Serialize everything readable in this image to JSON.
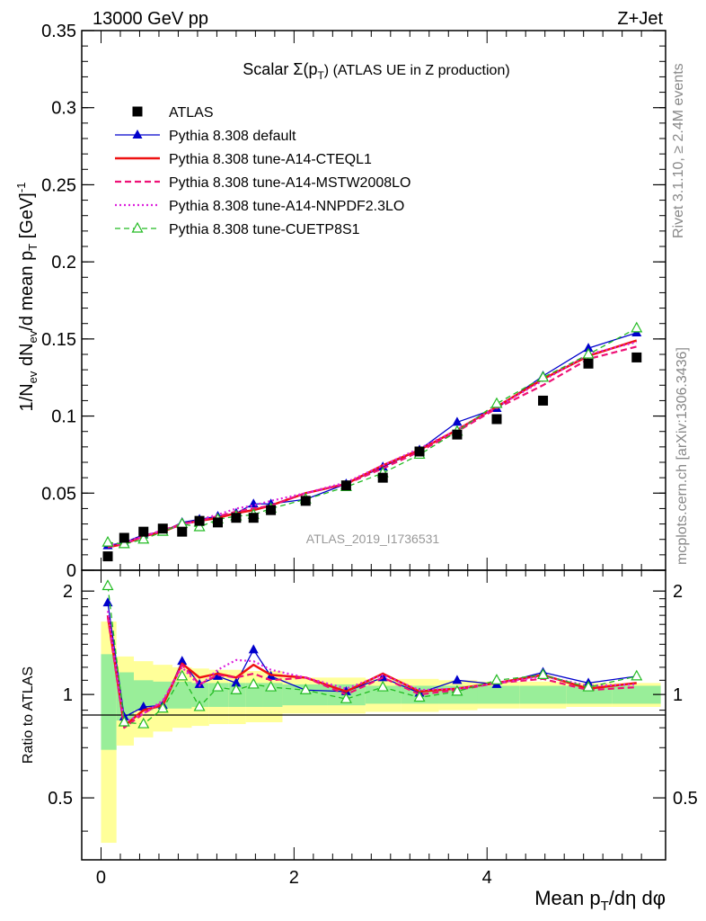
{
  "header": {
    "left": "13000 GeV pp",
    "right": "Z+Jet"
  },
  "side_labels": {
    "rivet": "Rivet 3.1.10, ≥ 2.4M events",
    "mcplots": "mcplots.cern.ch [arXiv:1306.3436]"
  },
  "watermark": "ATLAS_2019_I1736531",
  "chart_data": [
    {
      "type": "scatter",
      "title": "Scalar Σ(p_T) (ATLAS UE in Z production)",
      "xlabel": "Mean p_T/dη dφ",
      "ylabel": "1/N_ev dN_ev/d mean p_T [GeV]^-1",
      "xlim": [
        -0.2,
        5.85
      ],
      "ylim": [
        0,
        0.35
      ],
      "yticks": [
        0,
        0.05,
        0.1,
        0.15,
        0.2,
        0.25,
        0.3,
        0.35
      ],
      "ytick_labels": [
        "0",
        "0.05",
        "0.1",
        "0.15",
        "0.2",
        "0.25",
        "0.3",
        "0.35"
      ],
      "legend_position": "top-left",
      "x": [
        0.07,
        0.24,
        0.44,
        0.64,
        0.84,
        1.02,
        1.21,
        1.4,
        1.58,
        1.76,
        2.12,
        2.54,
        2.92,
        3.3,
        3.69,
        4.1,
        4.58,
        5.05,
        5.55
      ],
      "series": [
        {
          "name": "ATLAS",
          "style": "data",
          "color": "#000000",
          "values": [
            0.009,
            0.021,
            0.025,
            0.027,
            0.025,
            0.032,
            0.031,
            0.034,
            0.034,
            0.039,
            0.045,
            0.055,
            0.06,
            0.077,
            0.088,
            0.098,
            0.11,
            0.134,
            0.138
          ]
        },
        {
          "name": "Pythia 8.308 default",
          "style": "solid-triangle",
          "color": "#0000cc",
          "values": [
            0.016,
            0.018,
            0.023,
            0.025,
            0.031,
            0.033,
            0.035,
            0.037,
            0.043,
            0.043,
            0.046,
            0.056,
            0.067,
            0.078,
            0.096,
            0.105,
            0.126,
            0.144,
            0.154
          ]
        },
        {
          "name": "Pythia 8.308 tune-A14-CTEQL1",
          "style": "solid-thick",
          "color": "#ee1111",
          "values": [
            0.015,
            0.017,
            0.022,
            0.025,
            0.03,
            0.032,
            0.034,
            0.037,
            0.039,
            0.042,
            0.05,
            0.056,
            0.068,
            0.078,
            0.091,
            0.106,
            0.124,
            0.139,
            0.149
          ]
        },
        {
          "name": "Pythia 8.308 tune-A14-MSTW2008LO",
          "style": "dashed",
          "color": "#ee1177",
          "values": [
            0.015,
            0.017,
            0.022,
            0.026,
            0.03,
            0.032,
            0.035,
            0.038,
            0.04,
            0.042,
            0.05,
            0.056,
            0.066,
            0.077,
            0.09,
            0.105,
            0.12,
            0.137,
            0.145
          ]
        },
        {
          "name": "Pythia 8.308 tune-A14-NNPDF2.3LO",
          "style": "dotted",
          "color": "#dd22dd",
          "values": [
            0.016,
            0.018,
            0.022,
            0.026,
            0.029,
            0.033,
            0.036,
            0.04,
            0.042,
            0.045,
            0.05,
            0.057,
            0.068,
            0.079,
            0.091,
            0.106,
            0.123,
            0.14,
            0.148
          ]
        },
        {
          "name": "Pythia 8.308 tune-CUETP8S1",
          "style": "dashed-open-triangle",
          "color": "#22bb22",
          "values": [
            0.018,
            0.017,
            0.02,
            0.025,
            0.03,
            0.028,
            0.033,
            0.035,
            0.036,
            0.04,
            0.046,
            0.054,
            0.063,
            0.075,
            0.09,
            0.108,
            0.125,
            0.14,
            0.157
          ]
        }
      ]
    },
    {
      "type": "line",
      "ylabel": "Ratio to ATLAS",
      "xlabel": "Mean p_T/dη dφ",
      "xlim": [
        -0.2,
        5.85
      ],
      "ylim": [
        0.33,
        2.3
      ],
      "xticks": [
        0,
        2,
        4
      ],
      "xtick_labels": [
        "0",
        "2",
        "4"
      ],
      "yticks": [
        0.5,
        1,
        2
      ],
      "ytick_labels": [
        "0.5",
        "1",
        "2"
      ],
      "x": [
        0.07,
        0.24,
        0.44,
        0.64,
        0.84,
        1.02,
        1.21,
        1.4,
        1.58,
        1.76,
        2.12,
        2.54,
        2.92,
        3.3,
        3.69,
        4.1,
        4.58,
        5.05,
        5.55
      ],
      "band_edges": [
        0.0,
        0.16,
        0.34,
        0.54,
        0.74,
        0.94,
        1.12,
        1.32,
        1.5,
        1.68,
        1.88,
        2.35,
        2.74,
        3.11,
        3.5,
        3.9,
        4.34,
        4.82,
        5.3,
        5.8
      ],
      "band_stat": [
        0.31,
        0.16,
        0.1,
        0.09,
        0.09,
        0.08,
        0.08,
        0.08,
        0.08,
        0.08,
        0.07,
        0.07,
        0.06,
        0.06,
        0.06,
        0.06,
        0.06,
        0.06,
        0.06
      ],
      "band_total": [
        0.63,
        0.29,
        0.25,
        0.22,
        0.2,
        0.19,
        0.18,
        0.18,
        0.17,
        0.17,
        0.12,
        0.12,
        0.11,
        0.11,
        0.1,
        0.09,
        0.09,
        0.08,
        0.08
      ],
      "band_colors": {
        "stat": "#99ee99",
        "total": "#ffff99"
      },
      "series": [
        {
          "name": "Pythia 8.308 default",
          "color": "#0000cc",
          "values": [
            1.85,
            0.86,
            0.92,
            0.93,
            1.25,
            1.07,
            1.13,
            1.08,
            1.35,
            1.13,
            1.03,
            1.02,
            1.12,
            1.01,
            1.1,
            1.07,
            1.16,
            1.08,
            1.13
          ]
        },
        {
          "name": "Pythia 8.308 tune-A14-CTEQL1",
          "color": "#ee1111",
          "values": [
            1.7,
            0.81,
            0.9,
            0.93,
            1.23,
            1.12,
            1.15,
            1.12,
            1.22,
            1.14,
            1.12,
            1.02,
            1.15,
            1.02,
            1.04,
            1.08,
            1.14,
            1.04,
            1.08
          ]
        },
        {
          "name": "Pythia 8.308 tune-A14-MSTW2008LO",
          "color": "#ee1177",
          "values": [
            1.68,
            0.8,
            0.88,
            0.95,
            1.22,
            1.07,
            1.14,
            1.12,
            1.15,
            1.1,
            1.12,
            1.0,
            1.12,
            1.0,
            1.03,
            1.08,
            1.11,
            1.03,
            1.05
          ]
        },
        {
          "name": "Pythia 8.308 tune-A14-NNPDF2.3LO",
          "color": "#dd22dd",
          "values": [
            1.75,
            0.83,
            0.88,
            0.96,
            1.2,
            1.06,
            1.18,
            1.26,
            1.25,
            1.18,
            1.12,
            1.04,
            1.14,
            1.03,
            1.04,
            1.08,
            1.13,
            1.06,
            1.07
          ]
        },
        {
          "name": "Pythia 8.308 tune-CUETP8S1",
          "color": "#22bb22",
          "values": [
            2.07,
            0.83,
            0.82,
            0.91,
            1.13,
            0.92,
            1.05,
            1.03,
            1.07,
            1.05,
            1.03,
            0.97,
            1.05,
            0.98,
            1.02,
            1.1,
            1.14,
            1.05,
            1.13
          ]
        }
      ]
    }
  ]
}
